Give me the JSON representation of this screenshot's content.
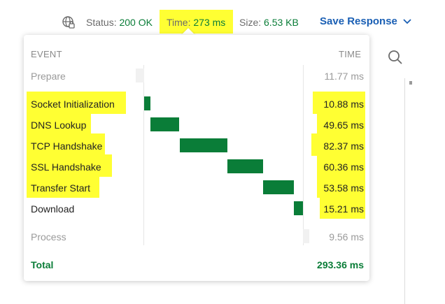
{
  "status_bar": {
    "status_label": "Status:",
    "status_value": "200 OK",
    "time_label": "Time:",
    "time_value": "273 ms",
    "size_label": "Size:",
    "size_value": "6.53 KB",
    "save_label": "Save Response",
    "accent_color": "#1a5fb4",
    "ok_color": "#0a7d38"
  },
  "timing": {
    "header_event": "EVENT",
    "header_time": "TIME",
    "rows": [
      {
        "event": "Prepare",
        "time": "11.77 ms",
        "style": "muted",
        "start_ms": 0,
        "duration_ms": 11.77
      },
      {
        "event": "Socket Initialization",
        "time": "10.88 ms",
        "style": "highlight",
        "start_ms": 0,
        "duration_ms": 10.88
      },
      {
        "event": "DNS Lookup",
        "time": "49.65 ms",
        "style": "highlight",
        "start_ms": 10.88,
        "duration_ms": 49.65
      },
      {
        "event": "TCP Handshake",
        "time": "82.37 ms",
        "style": "highlight",
        "start_ms": 60.53,
        "duration_ms": 82.37
      },
      {
        "event": "SSL Handshake",
        "time": "60.36 ms",
        "style": "highlight",
        "start_ms": 142.9,
        "duration_ms": 60.36
      },
      {
        "event": "Transfer Start",
        "time": "53.58 ms",
        "style": "highlight",
        "start_ms": 203.26,
        "duration_ms": 53.58
      },
      {
        "event": "Download",
        "time": "15.21 ms",
        "style": "highlight-time",
        "start_ms": 256.84,
        "duration_ms": 15.21
      },
      {
        "event": "Process",
        "time": "9.56 ms",
        "style": "muted",
        "start_ms": 272.05,
        "duration_ms": 9.56
      }
    ],
    "total_label": "Total",
    "total_value": "293.36 ms",
    "bar_color": "#0a7d38",
    "highlight_color": "#ffff33"
  }
}
